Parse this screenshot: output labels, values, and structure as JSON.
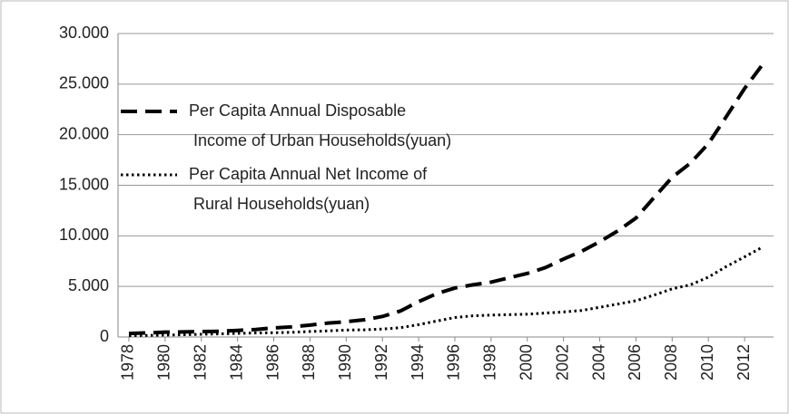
{
  "chart_data": {
    "type": "line",
    "x": [
      1978,
      1979,
      1980,
      1981,
      1982,
      1983,
      1984,
      1985,
      1986,
      1987,
      1988,
      1989,
      1990,
      1991,
      1992,
      1993,
      1994,
      1995,
      1996,
      1997,
      1998,
      1999,
      2000,
      2001,
      2002,
      2003,
      2004,
      2005,
      2006,
      2007,
      2008,
      2009,
      2010,
      2011,
      2012,
      2013
    ],
    "series": [
      {
        "name": "Per Capita Annual Disposable Income of Urban Households(yuan)",
        "color": "#000000",
        "dash": "dashed",
        "values": [
          343,
          405,
          478,
          500,
          535,
          565,
          652,
          739,
          900,
          1002,
          1180,
          1374,
          1510,
          1701,
          2027,
          2577,
          3496,
          4283,
          4839,
          5160,
          5425,
          5854,
          6280,
          6860,
          7703,
          8472,
          9422,
          10493,
          11759,
          13786,
          15781,
          17175,
          19109,
          21810,
          24565,
          26955
        ]
      },
      {
        "name": "Per Capita Annual Net Income of Rural Households(yuan)",
        "color": "#000000",
        "dash": "dotted",
        "values": [
          134,
          160,
          191,
          223,
          270,
          310,
          355,
          398,
          424,
          463,
          545,
          602,
          686,
          709,
          784,
          922,
          1221,
          1578,
          1926,
          2090,
          2162,
          2210,
          2253,
          2366,
          2476,
          2622,
          2936,
          3255,
          3587,
          4140,
          4761,
          5153,
          5919,
          6977,
          7917,
          8896
        ]
      }
    ],
    "xlim": [
      1977.4,
      2013.6
    ],
    "xticks": [
      1978,
      1980,
      1982,
      1984,
      1986,
      1988,
      1990,
      1992,
      1994,
      1996,
      1998,
      2000,
      2002,
      2004,
      2006,
      2008,
      2010,
      2012
    ],
    "ylim": [
      0,
      30000
    ],
    "yticks": [
      0,
      {
        "value": 5000,
        "label": "5.000"
      },
      {
        "value": 10000,
        "label": "10.000"
      },
      {
        "value": 15000,
        "label": "15.000"
      },
      {
        "value": 20000,
        "label": "20.000"
      },
      {
        "value": 25000,
        "label": "25.000"
      },
      {
        "value": 30000,
        "label": "30.000"
      }
    ],
    "grid": true,
    "legend": "upper left"
  }
}
